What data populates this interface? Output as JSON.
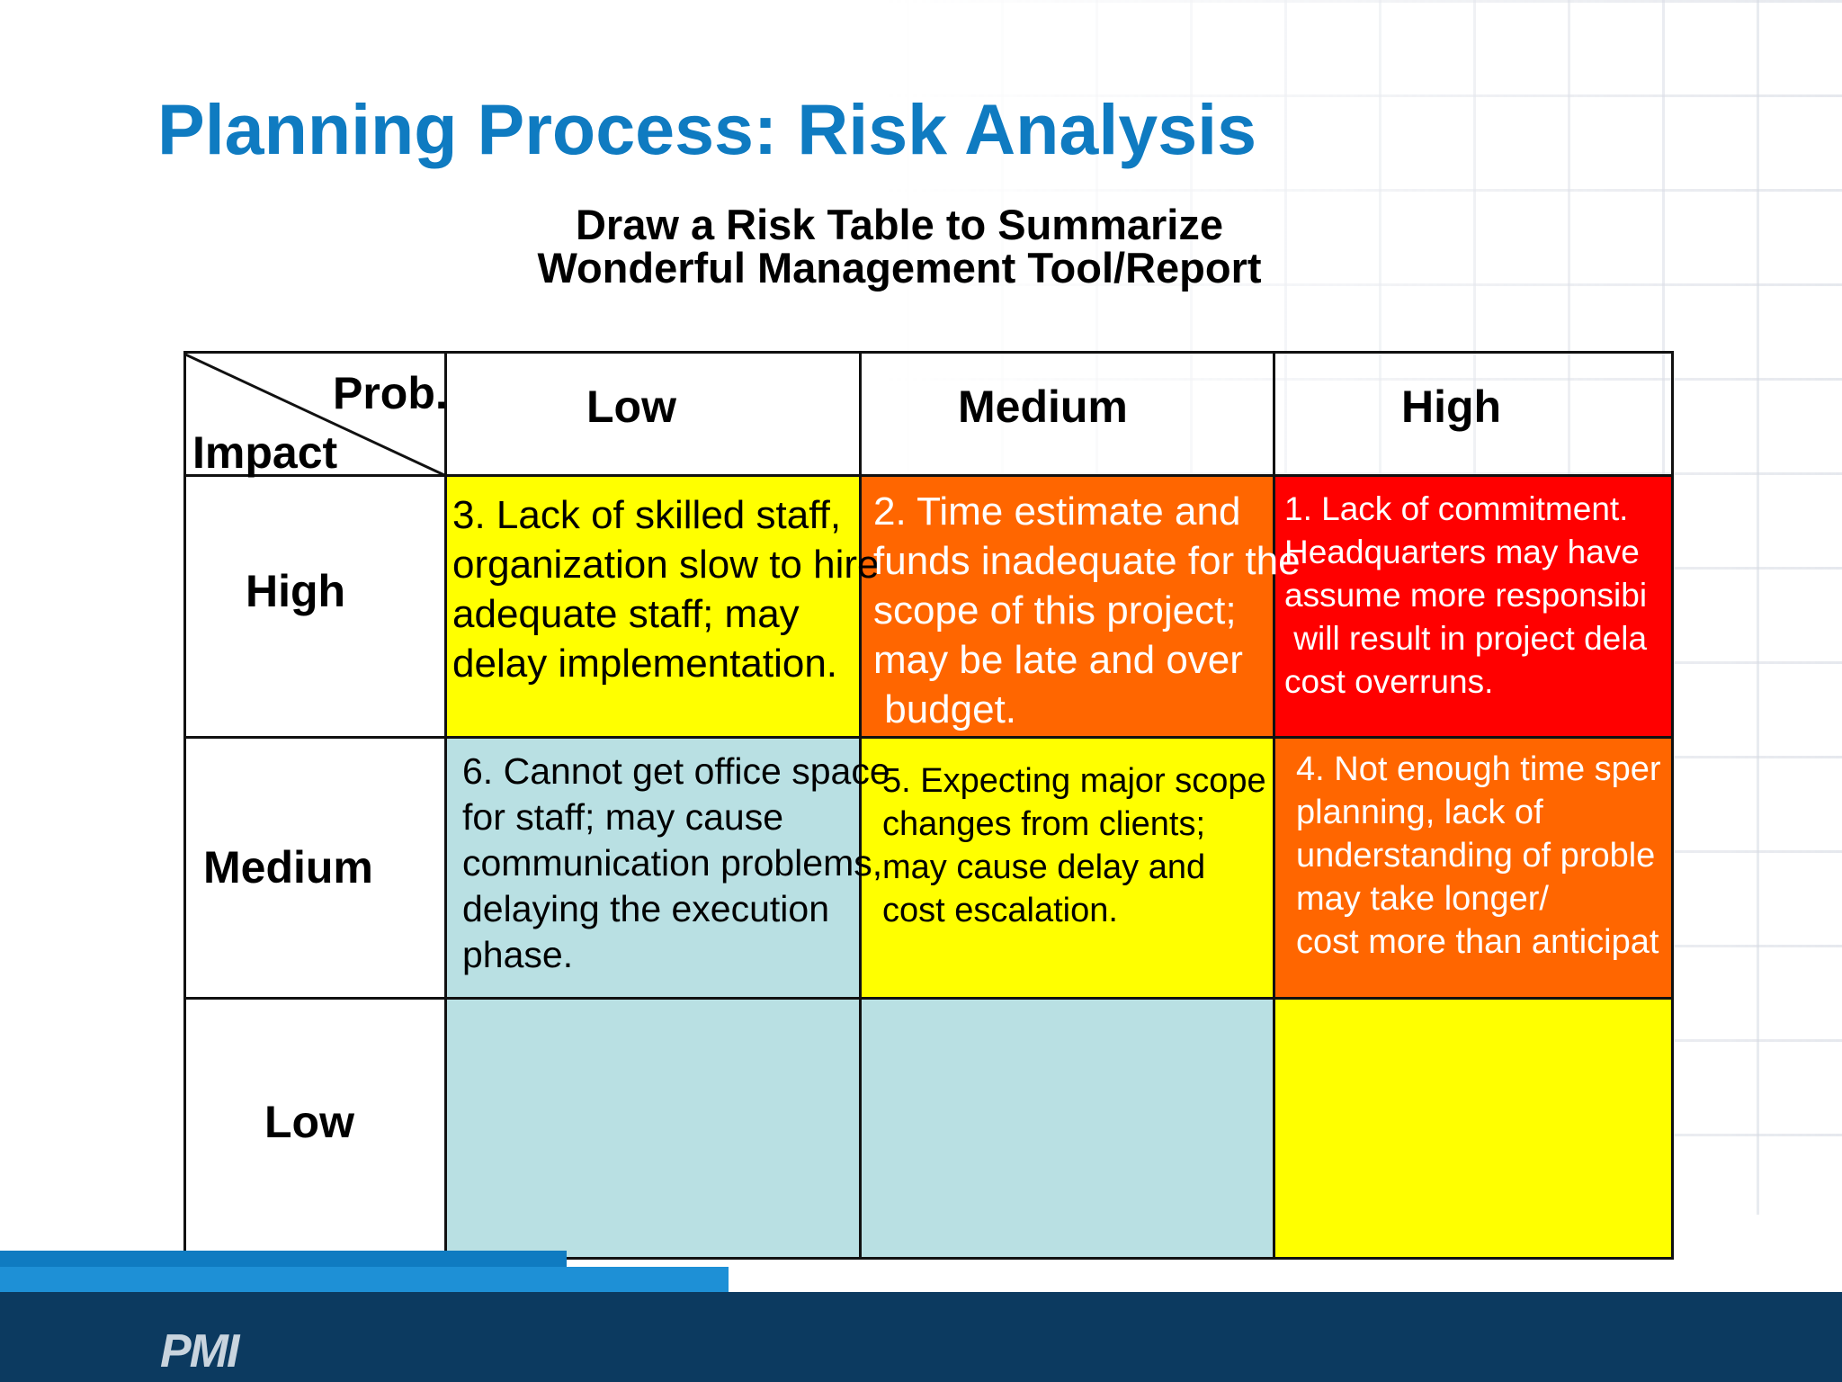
{
  "slide": {
    "title": "Planning Process: Risk Analysis",
    "subtitle_line1": "Draw a Risk Table to Summarize",
    "subtitle_line2": "Wonderful Management Tool/Report"
  },
  "table": {
    "corner": {
      "prob": "Prob.",
      "impact": "Impact"
    },
    "columns": [
      "Low",
      "Medium",
      "High"
    ],
    "rows": [
      "High",
      "Medium",
      "Low"
    ],
    "cells": {
      "high_low": [
        "3. Lack of skilled staff,",
        "organization slow to hire",
        "adequate staff; may",
        "delay implementation."
      ],
      "high_medium": [
        "2. Time estimate and",
        "funds inadequate for the",
        "scope of this project;",
        "may be late and over",
        " budget."
      ],
      "high_high": [
        "1. Lack of commitment.",
        "Headquarters may have",
        "assume more responsibi",
        " will result in project dela",
        "cost overruns."
      ],
      "medium_low": [
        "6. Cannot get office space",
        "for staff; may cause",
        "communication problems,",
        "delaying the execution",
        "phase."
      ],
      "medium_medium": [
        "5. Expecting major scope",
        "changes from clients;",
        "may cause delay and",
        "cost escalation."
      ],
      "medium_high": [
        "4. Not enough time sper",
        "planning, lack of",
        "understanding of proble",
        "may take longer/",
        "cost more than anticipat"
      ]
    },
    "colors": {
      "yellow": "#ffff00",
      "orange": "#ff6600",
      "red": "#ff0000",
      "light_blue": "#b9e0e3"
    }
  },
  "footer": {
    "logo_text": "PMI"
  }
}
